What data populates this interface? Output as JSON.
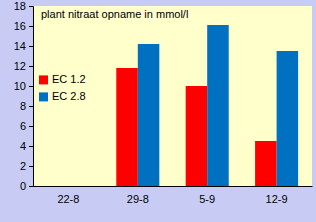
{
  "chart_data": {
    "type": "bar",
    "title": "plant nitraat opname in mmol/l",
    "categories": [
      "22-8",
      "29-8",
      "5-9",
      "12-9"
    ],
    "series": [
      {
        "name": "EC 1.2",
        "color": "#ff0000",
        "values": [
          null,
          11.8,
          10.0,
          4.5
        ]
      },
      {
        "name": "EC 2.8",
        "color": "#0070c0",
        "values": [
          null,
          14.2,
          16.1,
          13.5
        ]
      }
    ],
    "ylim": [
      0,
      18
    ],
    "yticks": [
      0,
      2,
      4,
      6,
      8,
      10,
      12,
      14,
      16,
      18
    ],
    "grid": false,
    "legend": "left"
  }
}
